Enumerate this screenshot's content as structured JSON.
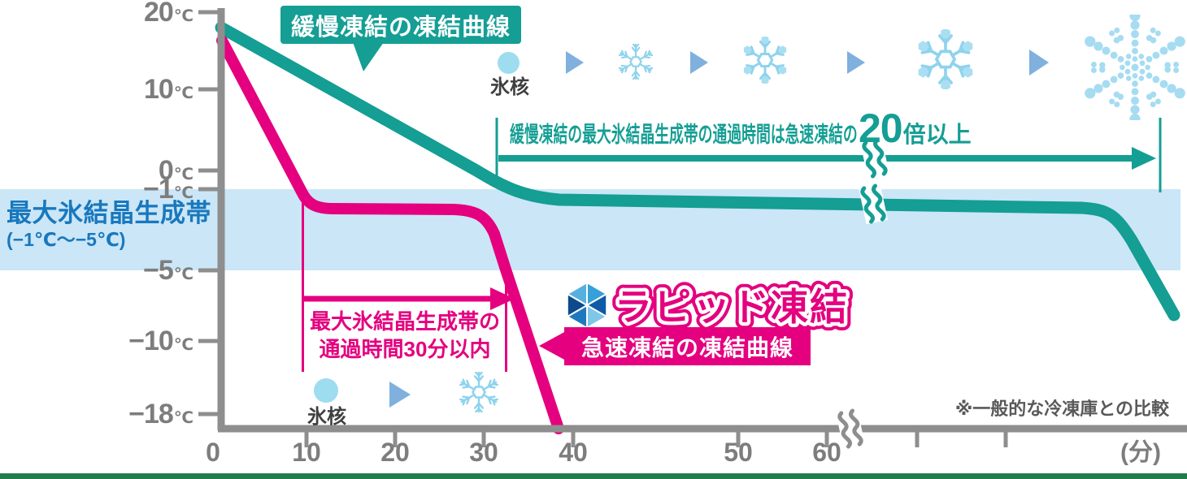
{
  "palette": {
    "teal": "#149e94",
    "pink": "#e4007f",
    "band_blue": "#cbe6f6",
    "zone_label_blue": "#1878be",
    "axis_gray": "#8e8e8e",
    "icon_blue": "#9edcf0",
    "flake_blue": "#8fd3ed",
    "arrow_triangle_blue": "#7fb0de",
    "green_bar": "#237b4a"
  },
  "y_axis": {
    "ticks": [
      {
        "value": "20",
        "unit": "℃"
      },
      {
        "value": "10",
        "unit": "℃"
      },
      {
        "value": "0",
        "unit": "℃"
      },
      {
        "value": "−1",
        "unit": "℃"
      },
      {
        "value": "−5",
        "unit": "℃"
      },
      {
        "value": "−10",
        "unit": "℃"
      },
      {
        "value": "−18",
        "unit": "℃"
      }
    ]
  },
  "x_axis": {
    "ticks": [
      "0",
      "10",
      "20",
      "30",
      "40",
      "50",
      "60"
    ],
    "unit": "(分)"
  },
  "zone": {
    "title": "最大氷結晶生成帯",
    "range": "(−1℃～−5℃)"
  },
  "slow_freezing": {
    "curve_label": "緩慢凍結の凍結曲線",
    "nucleus": "氷核",
    "passage_prefix": "緩慢凍結の最大氷結晶生成帯の通過時間は急速凍結の",
    "passage_big": "20",
    "passage_suffix": "倍以上"
  },
  "rapid_freezing": {
    "brand": "ラピッド凍結",
    "curve_label": "急速凍結の凍結曲線",
    "nucleus": "氷核",
    "passage_line1": "最大氷結晶生成帯の",
    "passage_line2": "通過時間30分以内"
  },
  "footnote": "※一般的な冷凍庫との比較",
  "chart_data": {
    "type": "line",
    "title": "",
    "xlabel": "(分)",
    "ylabel": "℃",
    "x_ticks": [
      0,
      10,
      20,
      30,
      40,
      50,
      60
    ],
    "x_axis_break_after": 60,
    "y_ticks": [
      20,
      10,
      0,
      -1,
      -5,
      -10,
      -18
    ],
    "ylim": [
      -20,
      20
    ],
    "grid": false,
    "legend_position": "inline-callouts",
    "critical_zone": {
      "label": "最大氷結晶生成帯",
      "from": -1,
      "to": -5
    },
    "series": [
      {
        "name": "緩慢凍結の凍結曲線",
        "color": "#149e94",
        "points": [
          [
            0,
            18
          ],
          [
            34,
            -1
          ],
          [
            40,
            -1.4
          ],
          [
            60,
            -1.7
          ],
          [
            105,
            -2.3
          ],
          [
            110,
            -5
          ],
          [
            113,
            -8
          ]
        ],
        "note": "時間軸は60分以降に省略記号あり"
      },
      {
        "name": "急速凍結の凍結曲線",
        "color": "#e4007f",
        "points": [
          [
            0,
            17
          ],
          [
            9.5,
            -1
          ],
          [
            25,
            -1.4
          ],
          [
            29,
            -3
          ],
          [
            31.5,
            -5
          ],
          [
            38,
            -18
          ]
        ]
      }
    ],
    "annotations": [
      {
        "text": "緩慢凍結の最大氷結晶生成帯の通過時間は急速凍結の20倍以上",
        "color": "#149e94",
        "applies_to": "緩慢凍結の凍結曲線"
      },
      {
        "text": "最大氷結晶生成帯の通過時間30分以内",
        "color": "#e4007f",
        "applies_to": "急速凍結の凍結曲線"
      },
      {
        "text": "氷核",
        "color": "#3f3f3f"
      },
      {
        "text": "※一般的な冷凍庫との比較",
        "color": "#595959"
      }
    ]
  }
}
